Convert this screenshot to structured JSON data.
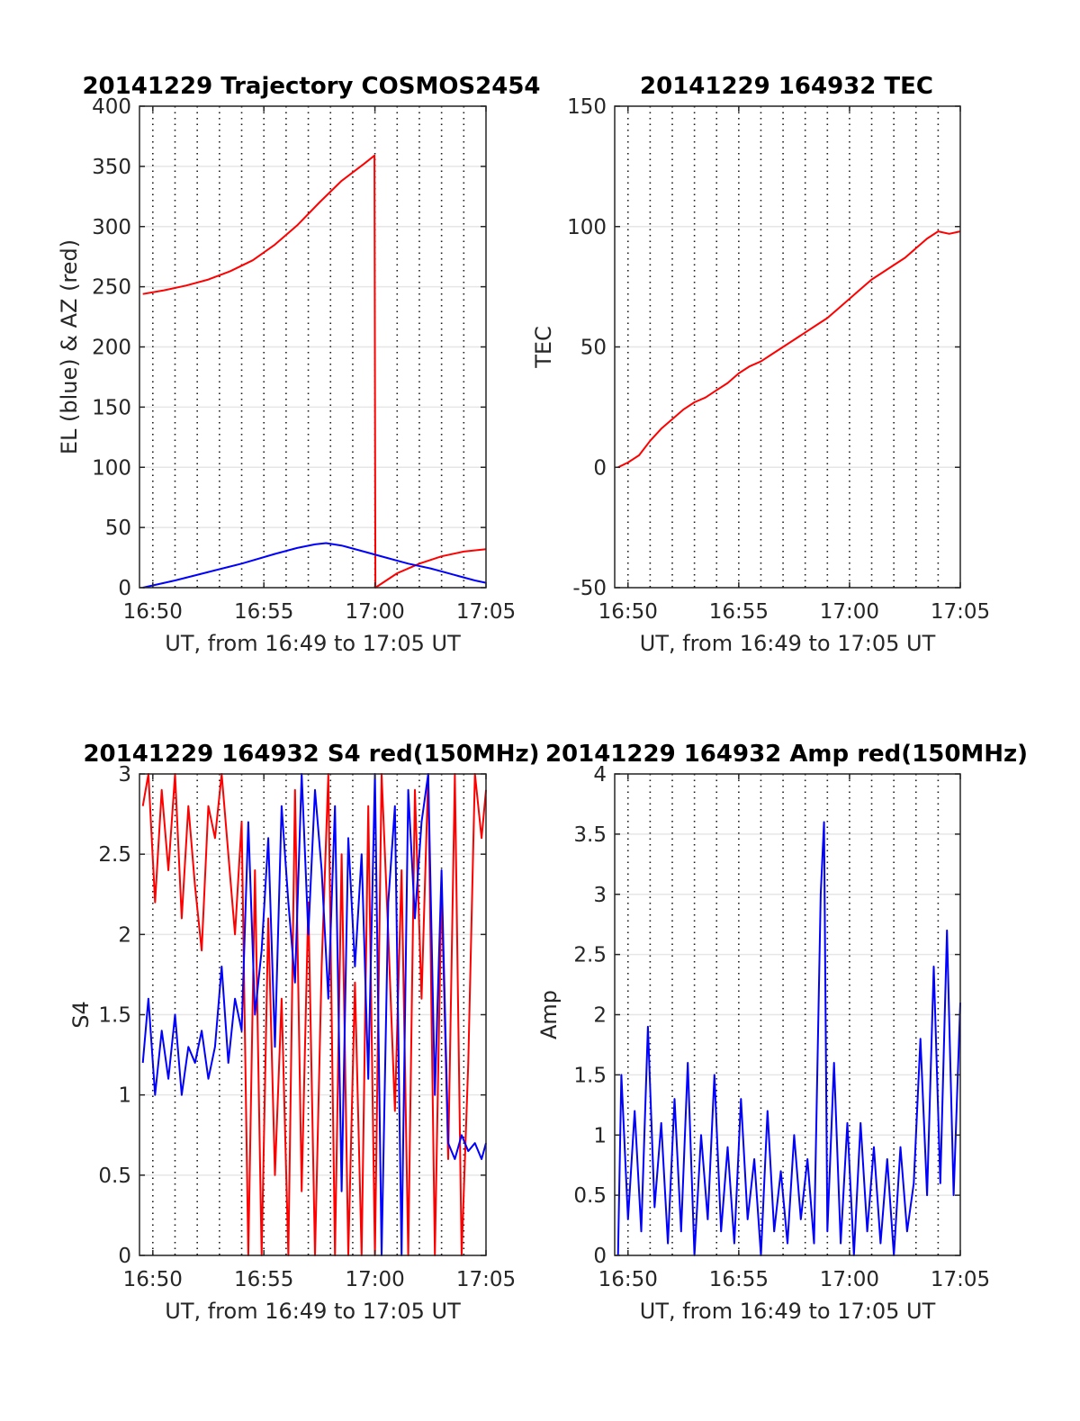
{
  "chart_data": [
    {
      "type": "line",
      "title": "20141229 Trajectory COSMOS2454",
      "xlabel": "UT, from 16:49 to 17:05 UT",
      "ylabel": "EL (blue) & AZ (red)",
      "xticks": [
        "16:50",
        "16:55",
        "17:00",
        "17:05"
      ],
      "yticks": [
        "0",
        "50",
        "100",
        "150",
        "200",
        "250",
        "300",
        "350",
        "400"
      ],
      "xlim_min": [
        49.4,
        65.0
      ],
      "ylim": [
        0,
        400
      ],
      "grid": true,
      "series": [
        {
          "color": "#ff0000",
          "x": [
            49.55,
            50.5,
            51.5,
            52.5,
            53.5,
            54.5,
            55.5,
            56.5,
            57.5,
            58.5,
            59.5,
            59.98,
            60.02,
            61.0,
            62.0,
            63.0,
            64.0,
            65.0
          ],
          "y": [
            244,
            247,
            251,
            256,
            263,
            272,
            285,
            301,
            320,
            338,
            352,
            359,
            0,
            12,
            20,
            26,
            30,
            32
          ]
        },
        {
          "color": "#0000ff",
          "x": [
            49.55,
            51.0,
            52.5,
            54.0,
            55.5,
            56.5,
            57.3,
            57.8,
            58.5,
            59.5,
            60.5,
            61.5,
            62.5,
            63.5,
            64.5,
            65.0
          ],
          "y": [
            0,
            6,
            13,
            20,
            28,
            33,
            36,
            37,
            35,
            30,
            25,
            20,
            16,
            11,
            6,
            4
          ]
        }
      ]
    },
    {
      "type": "line",
      "title": "20141229 164932 TEC",
      "xlabel": "UT, from 16:49 to 17:05 UT",
      "ylabel": "TEC",
      "xticks": [
        "16:50",
        "16:55",
        "17:00",
        "17:05"
      ],
      "yticks": [
        "-50",
        "0",
        "50",
        "100",
        "150"
      ],
      "xlim_min": [
        49.4,
        65.0
      ],
      "ylim": [
        -50,
        150
      ],
      "grid": true,
      "series": [
        {
          "color": "#ff0000",
          "x": [
            49.55,
            50.0,
            50.5,
            51.0,
            51.5,
            52.0,
            52.5,
            53.0,
            53.5,
            54.0,
            54.5,
            55.0,
            55.5,
            56.0,
            56.5,
            57.0,
            57.5,
            58.0,
            58.5,
            59.0,
            59.5,
            60.0,
            60.5,
            61.0,
            61.5,
            62.0,
            62.5,
            63.0,
            63.5,
            64.0,
            64.5,
            65.0
          ],
          "y": [
            0,
            2,
            5,
            11,
            16,
            20,
            24,
            27,
            29,
            32,
            35,
            39,
            42,
            44,
            47,
            50,
            53,
            56,
            59,
            62,
            66,
            70,
            74,
            78,
            81,
            84,
            87,
            91,
            95,
            98,
            97,
            98
          ]
        }
      ]
    },
    {
      "type": "line",
      "title": "20141229 164932 S4 red(150MHz)",
      "xlabel": "UT, from 16:49 to 17:05 UT",
      "ylabel": "S4",
      "xticks": [
        "16:50",
        "16:55",
        "17:00",
        "17:05"
      ],
      "yticks": [
        "0",
        "0.5",
        "1",
        "1.5",
        "2",
        "2.5",
        "3"
      ],
      "xlim_min": [
        49.4,
        65.0
      ],
      "ylim": [
        0,
        3
      ],
      "grid": true,
      "series": [
        {
          "color": "#ff0000",
          "x": [
            49.55,
            49.8,
            50.1,
            50.4,
            50.7,
            51.0,
            51.3,
            51.6,
            51.9,
            52.2,
            52.5,
            52.8,
            53.1,
            53.4,
            53.7,
            54.0,
            54.3,
            54.6,
            54.9,
            55.2,
            55.5,
            55.8,
            56.1,
            56.4,
            56.7,
            57.0,
            57.3,
            57.6,
            57.9,
            58.2,
            58.5,
            58.8,
            59.1,
            59.4,
            59.7,
            60.0,
            60.3,
            60.6,
            60.9,
            61.2,
            61.5,
            61.8,
            62.1,
            62.4,
            62.7,
            63.0,
            63.3,
            63.6,
            63.9,
            64.2,
            64.5,
            64.8,
            65.0
          ],
          "y": [
            2.8,
            3.0,
            2.2,
            2.9,
            2.4,
            3.0,
            2.1,
            2.8,
            2.3,
            1.9,
            2.8,
            2.6,
            3.0,
            2.5,
            2.0,
            2.7,
            0.0,
            2.4,
            0.0,
            2.1,
            0.5,
            1.6,
            0.0,
            2.9,
            0.4,
            2.2,
            0.0,
            1.8,
            3.0,
            0.0,
            2.5,
            0.0,
            1.7,
            0.0,
            2.8,
            0.0,
            3.0,
            2.0,
            0.9,
            2.4,
            0.0,
            2.9,
            1.6,
            3.0,
            0.0,
            2.3,
            0.6,
            3.0,
            0.0,
            1.2,
            3.0,
            2.6,
            2.9
          ]
        },
        {
          "color": "#0000ff",
          "x": [
            49.55,
            49.8,
            50.1,
            50.4,
            50.7,
            51.0,
            51.3,
            51.6,
            51.9,
            52.2,
            52.5,
            52.8,
            53.1,
            53.4,
            53.7,
            54.0,
            54.3,
            54.6,
            54.9,
            55.2,
            55.5,
            55.8,
            56.1,
            56.4,
            56.7,
            57.0,
            57.3,
            57.6,
            57.9,
            58.2,
            58.5,
            58.8,
            59.1,
            59.4,
            59.7,
            60.0,
            60.3,
            60.6,
            60.9,
            61.2,
            61.5,
            61.8,
            62.1,
            62.4,
            62.7,
            63.0,
            63.3,
            63.6,
            63.9,
            64.2,
            64.5,
            64.8,
            65.0
          ],
          "y": [
            1.2,
            1.6,
            1.0,
            1.4,
            1.1,
            1.5,
            1.0,
            1.3,
            1.2,
            1.4,
            1.1,
            1.3,
            1.8,
            1.2,
            1.6,
            1.4,
            2.7,
            1.5,
            1.9,
            2.6,
            1.3,
            2.8,
            2.2,
            1.7,
            3.0,
            2.0,
            2.9,
            2.4,
            1.6,
            2.8,
            0.4,
            2.6,
            1.8,
            2.5,
            1.1,
            3.0,
            0.0,
            2.2,
            2.8,
            0.0,
            2.9,
            2.1,
            2.7,
            3.0,
            1.0,
            2.4,
            0.7,
            0.6,
            0.75,
            0.65,
            0.7,
            0.6,
            0.7
          ]
        }
      ]
    },
    {
      "type": "line",
      "title": "20141229 164932 Amp red(150MHz)",
      "xlabel": "UT, from 16:49 to 17:05 UT",
      "ylabel": "Amp",
      "xticks": [
        "16:50",
        "16:55",
        "17:00",
        "17:05"
      ],
      "yticks": [
        "0",
        "0.5",
        "1",
        "1.5",
        "2",
        "2.5",
        "3",
        "3.5",
        "4"
      ],
      "xlim_min": [
        49.4,
        65.0
      ],
      "ylim": [
        0,
        4
      ],
      "grid": true,
      "series": [
        {
          "color": "#0000ff",
          "x": [
            49.55,
            49.7,
            50.0,
            50.3,
            50.6,
            50.9,
            51.2,
            51.5,
            51.8,
            52.1,
            52.4,
            52.7,
            53.0,
            53.3,
            53.6,
            53.9,
            54.2,
            54.5,
            54.8,
            55.1,
            55.4,
            55.7,
            56.0,
            56.3,
            56.6,
            56.9,
            57.2,
            57.5,
            57.8,
            58.1,
            58.4,
            58.7,
            58.85,
            59.0,
            59.3,
            59.6,
            59.9,
            60.2,
            60.5,
            60.8,
            61.1,
            61.4,
            61.7,
            62.0,
            62.3,
            62.6,
            62.9,
            63.2,
            63.5,
            63.8,
            64.1,
            64.4,
            64.7,
            65.0
          ],
          "y": [
            0.0,
            1.5,
            0.3,
            1.2,
            0.2,
            1.9,
            0.4,
            1.1,
            0.1,
            1.3,
            0.2,
            1.6,
            0.0,
            1.0,
            0.3,
            1.5,
            0.2,
            0.9,
            0.1,
            1.3,
            0.3,
            0.8,
            0.0,
            1.2,
            0.2,
            0.7,
            0.1,
            1.0,
            0.3,
            0.8,
            0.1,
            3.0,
            3.6,
            0.2,
            1.6,
            0.1,
            1.1,
            0.0,
            1.1,
            0.2,
            0.9,
            0.1,
            0.8,
            0.0,
            0.9,
            0.2,
            0.6,
            1.8,
            0.5,
            2.4,
            0.6,
            2.7,
            0.5,
            2.1
          ]
        }
      ]
    }
  ]
}
